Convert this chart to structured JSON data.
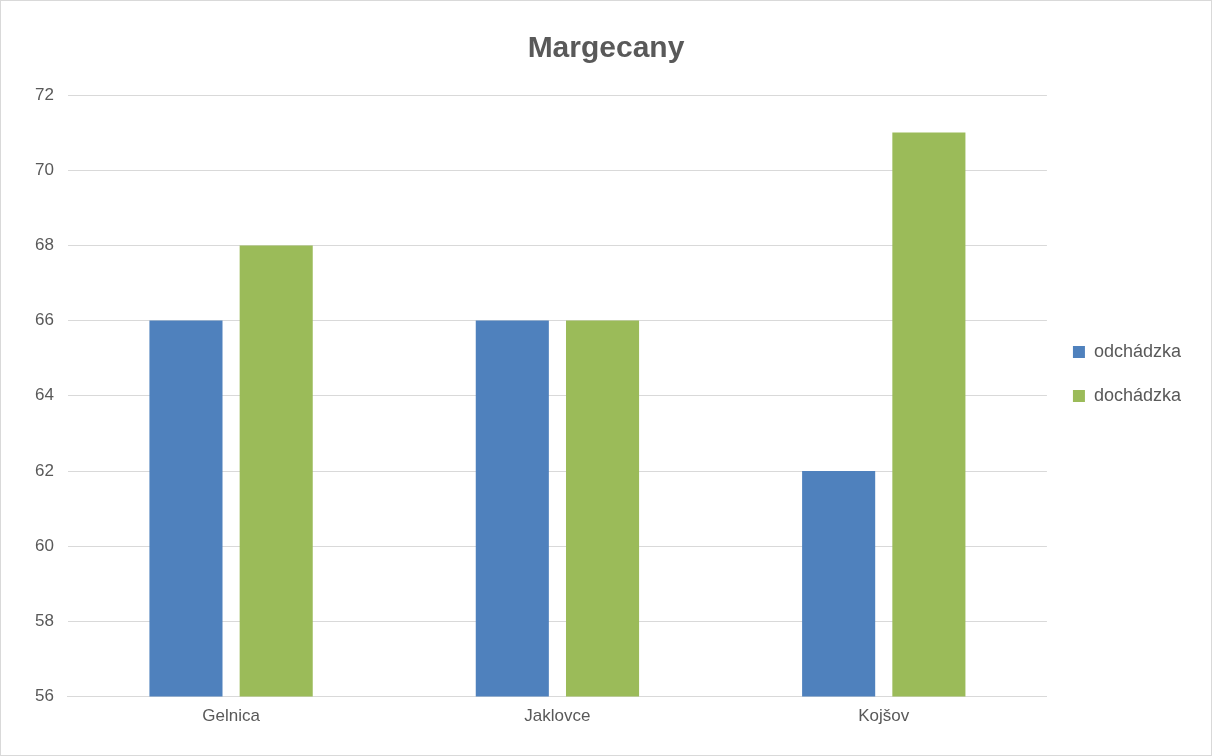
{
  "chart_data": {
    "type": "bar",
    "title": "Margecany",
    "categories": [
      "Gelnica",
      "Jaklovce",
      "Kojšov"
    ],
    "series": [
      {
        "name": "odchádzka",
        "color": "#4f81bd",
        "values": [
          66,
          66,
          62
        ]
      },
      {
        "name": "dochádzka",
        "color": "#9bbb59",
        "values": [
          68,
          66,
          71
        ]
      }
    ],
    "ylim": [
      56,
      72
    ],
    "yticks": [
      56,
      58,
      60,
      62,
      64,
      66,
      68,
      70,
      72
    ],
    "grid": "y",
    "legend": "right"
  }
}
